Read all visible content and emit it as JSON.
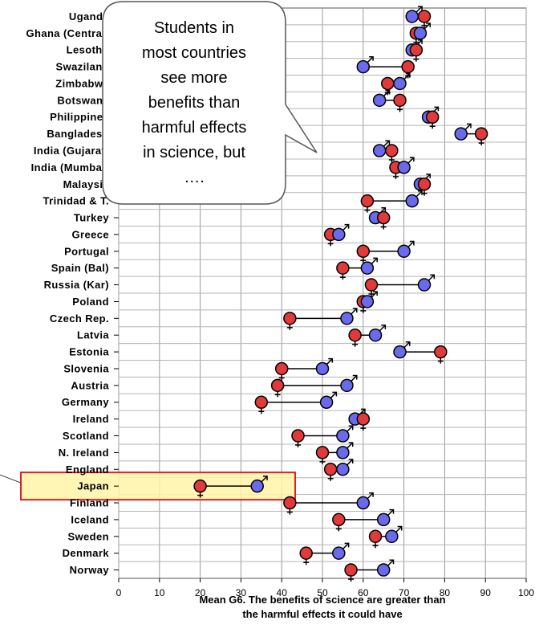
{
  "chart_data": {
    "type": "scatter",
    "xlabel_lines": [
      "Mean G6. The benefits of science are greater than",
      "the harmful effects it could have"
    ],
    "xlim": [
      0,
      100
    ],
    "xticks": [
      0,
      10,
      20,
      30,
      40,
      50,
      60,
      70,
      80,
      90,
      100
    ],
    "grid": true,
    "series_colors": {
      "boys": "#6a6aec",
      "girls": "#e03a3a"
    },
    "rows": [
      {
        "country": "Uganda",
        "boys": 72,
        "girls": 75
      },
      {
        "country": "Ghana (Central)",
        "boys": 74,
        "girls": 73
      },
      {
        "country": "Lesotho",
        "boys": 72,
        "girls": 73
      },
      {
        "country": "Swaziland",
        "boys": 60,
        "girls": 71
      },
      {
        "country": "Zimbabwe",
        "boys": 69,
        "girls": 66
      },
      {
        "country": "Botswana",
        "boys": 64,
        "girls": 69
      },
      {
        "country": "Philippines",
        "boys": 76,
        "girls": 77
      },
      {
        "country": "Bangladesh",
        "boys": 84,
        "girls": 89
      },
      {
        "country": "India (Gujarat)",
        "boys": 64,
        "girls": 67
      },
      {
        "country": "India (Mumbai)",
        "boys": 70,
        "girls": 68
      },
      {
        "country": "Malaysia",
        "boys": 74,
        "girls": 75
      },
      {
        "country": "Trinidad & T.",
        "boys": 72,
        "girls": 61
      },
      {
        "country": "Turkey",
        "boys": 63,
        "girls": 65
      },
      {
        "country": "Greece",
        "boys": 54,
        "girls": 52
      },
      {
        "country": "Portugal",
        "boys": 70,
        "girls": 60
      },
      {
        "country": "Spain (Bal)",
        "boys": 61,
        "girls": 55
      },
      {
        "country": "Russia (Kar)",
        "boys": 75,
        "girls": 62
      },
      {
        "country": "Poland",
        "boys": 61,
        "girls": 60
      },
      {
        "country": "Czech Rep.",
        "boys": 56,
        "girls": 42
      },
      {
        "country": "Latvia",
        "boys": 63,
        "girls": 58
      },
      {
        "country": "Estonia",
        "boys": 69,
        "girls": 79
      },
      {
        "country": "Slovenia",
        "boys": 50,
        "girls": 40
      },
      {
        "country": "Austria",
        "boys": 56,
        "girls": 39
      },
      {
        "country": "Germany",
        "boys": 51,
        "girls": 35
      },
      {
        "country": "Ireland",
        "boys": 58,
        "girls": 60
      },
      {
        "country": "Scotland",
        "boys": 55,
        "girls": 44
      },
      {
        "country": "N. Ireland",
        "boys": 55,
        "girls": 50
      },
      {
        "country": "England",
        "boys": 55,
        "girls": 52
      },
      {
        "country": "Japan",
        "boys": 34,
        "girls": 20,
        "highlight": true
      },
      {
        "country": "Finland",
        "boys": 60,
        "girls": 42
      },
      {
        "country": "Iceland",
        "boys": 65,
        "girls": 54
      },
      {
        "country": "Sweden",
        "boys": 67,
        "girls": 63
      },
      {
        "country": "Denmark",
        "boys": 54,
        "girls": 46
      },
      {
        "country": "Norway",
        "boys": 65,
        "girls": 57
      }
    ]
  },
  "callout": {
    "lines": [
      "Students in",
      "most countries",
      "see more",
      "benefits than",
      "harmful effects",
      "in science, but",
      "…."
    ]
  },
  "highlight_colors": {
    "fill": "#fff3a8",
    "border": "#e02020"
  }
}
